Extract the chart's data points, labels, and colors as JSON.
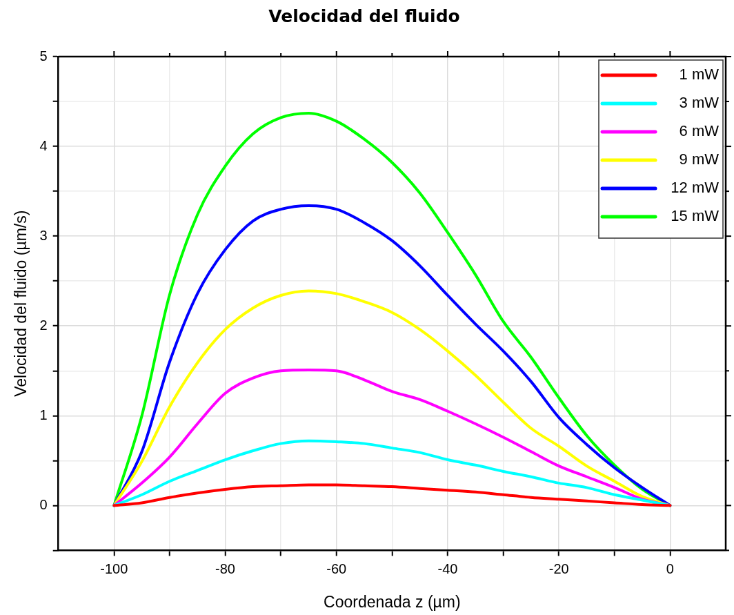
{
  "chart_data": {
    "type": "line",
    "title": "Velocidad del fluido",
    "xlabel": "Coordenada z (µm)",
    "ylabel": "Velocidad del fluido (µm/s)",
    "x": [
      -100,
      -95,
      -90,
      -85,
      -80,
      -75,
      -70,
      -65,
      -60,
      -55,
      -50,
      -45,
      -40,
      -35,
      -30,
      -25,
      -20,
      -15,
      -10,
      -5,
      0
    ],
    "series": [
      {
        "name": "1 mW",
        "color": "#ff0000",
        "values": [
          0,
          0.03,
          0.09,
          0.14,
          0.18,
          0.21,
          0.22,
          0.23,
          0.23,
          0.22,
          0.21,
          0.19,
          0.17,
          0.15,
          0.12,
          0.09,
          0.07,
          0.05,
          0.03,
          0.01,
          0
        ]
      },
      {
        "name": "3 mW",
        "color": "#00ffff",
        "values": [
          0,
          0.12,
          0.27,
          0.39,
          0.51,
          0.61,
          0.69,
          0.72,
          0.71,
          0.69,
          0.64,
          0.59,
          0.51,
          0.45,
          0.38,
          0.32,
          0.25,
          0.2,
          0.12,
          0.06,
          0
        ]
      },
      {
        "name": "6 mW",
        "color": "#ff00ff",
        "values": [
          0,
          0.25,
          0.54,
          0.91,
          1.25,
          1.42,
          1.5,
          1.51,
          1.5,
          1.4,
          1.27,
          1.18,
          1.05,
          0.91,
          0.76,
          0.6,
          0.44,
          0.32,
          0.2,
          0.07,
          0
        ]
      },
      {
        "name": "9 mW",
        "color": "#ffff00",
        "values": [
          0,
          0.49,
          1.1,
          1.59,
          1.96,
          2.2,
          2.34,
          2.39,
          2.36,
          2.27,
          2.15,
          1.96,
          1.72,
          1.45,
          1.15,
          0.86,
          0.66,
          0.44,
          0.27,
          0.1,
          0
        ]
      },
      {
        "name": "12 mW",
        "color": "#0000ff",
        "values": [
          0,
          0.6,
          1.6,
          2.36,
          2.85,
          3.17,
          3.3,
          3.34,
          3.3,
          3.15,
          2.95,
          2.67,
          2.34,
          2.02,
          1.72,
          1.38,
          0.98,
          0.68,
          0.42,
          0.2,
          0
        ]
      },
      {
        "name": "15 mW",
        "color": "#00ff00",
        "values": [
          0,
          1.0,
          2.35,
          3.24,
          3.78,
          4.14,
          4.32,
          4.37,
          4.28,
          4.08,
          3.82,
          3.48,
          3.04,
          2.57,
          2.05,
          1.65,
          1.2,
          0.78,
          0.45,
          0.18,
          0
        ]
      }
    ],
    "xlim": [
      -110,
      10
    ],
    "ylim": [
      -0.5,
      5
    ],
    "xticks": [
      -100,
      {
        "value": -90,
        "label": null
      },
      -80,
      {
        "value": -70,
        "label": null
      },
      -60,
      {
        "value": -50,
        "label": null
      },
      -40,
      {
        "value": -30,
        "label": null
      },
      -20,
      {
        "value": -10,
        "label": null
      },
      0
    ],
    "yticks": [
      {
        "value": -0.5,
        "label": null
      },
      0,
      {
        "value": 0.5,
        "label": null
      },
      1,
      {
        "value": 1.5,
        "label": null
      },
      2,
      {
        "value": 2.5,
        "label": null
      },
      3,
      {
        "value": 3.5,
        "label": null
      },
      4,
      {
        "value": 4.5,
        "label": null
      },
      5
    ],
    "grid": true,
    "legend": "top right",
    "marker": "none",
    "line_style": "solid"
  }
}
